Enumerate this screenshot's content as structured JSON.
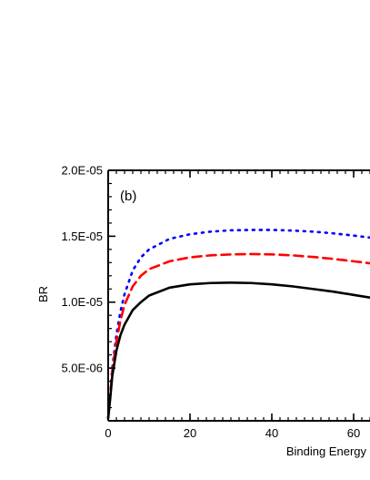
{
  "chart_data": {
    "type": "line",
    "panel_label": "(b)",
    "xlabel": "Binding Energy",
    "ylabel": "BR",
    "xlim": [
      0,
      64
    ],
    "ylim": [
      1e-06,
      2e-05
    ],
    "x_ticks": [
      0,
      20,
      40,
      60
    ],
    "x_tick_labels": [
      "0",
      "20",
      "40",
      "60"
    ],
    "y_ticks": [
      5e-06,
      1e-05,
      1.5e-05,
      2e-05
    ],
    "y_tick_labels": [
      "5.0E-06",
      "1.0E-05",
      "1.5E-05",
      "2.0E-05"
    ],
    "legend": "none",
    "grid": false,
    "series": [
      {
        "color": "#0000ff",
        "style": "dotted",
        "x": [
          0,
          0.5,
          1,
          2,
          3,
          4,
          6,
          8,
          10,
          15,
          20,
          25,
          30,
          35,
          40,
          45,
          50,
          55,
          60,
          64
        ],
        "y": [
          1.2e-06,
          3e-06,
          5e-06,
          7.5e-06,
          9.3e-06,
          1.06e-05,
          1.24e-05,
          1.34e-05,
          1.4e-05,
          1.48e-05,
          1.515e-05,
          1.535e-05,
          1.545e-05,
          1.548e-05,
          1.548e-05,
          1.543e-05,
          1.535e-05,
          1.522e-05,
          1.505e-05,
          1.49e-05
        ]
      },
      {
        "color": "#ff0000",
        "style": "dashed",
        "x": [
          0,
          0.5,
          1,
          2,
          3,
          4,
          6,
          8,
          10,
          15,
          20,
          25,
          30,
          35,
          40,
          45,
          50,
          55,
          60,
          64
        ],
        "y": [
          1.2e-06,
          2.9e-06,
          4.8e-06,
          7e-06,
          8.6e-06,
          9.8e-06,
          1.12e-05,
          1.2e-05,
          1.25e-05,
          1.31e-05,
          1.34e-05,
          1.355e-05,
          1.362e-05,
          1.365e-05,
          1.362e-05,
          1.355e-05,
          1.343e-05,
          1.328e-05,
          1.31e-05,
          1.295e-05
        ]
      },
      {
        "color": "#000000",
        "style": "solid",
        "x": [
          0,
          0.5,
          1,
          2,
          3,
          4,
          6,
          8,
          10,
          15,
          20,
          25,
          30,
          35,
          40,
          45,
          50,
          55,
          60,
          64
        ],
        "y": [
          1.2e-06,
          2.7e-06,
          4.4e-06,
          6.3e-06,
          7.5e-06,
          8.3e-06,
          9.4e-06,
          1e-05,
          1.05e-05,
          1.11e-05,
          1.135e-05,
          1.145e-05,
          1.148e-05,
          1.145e-05,
          1.135e-05,
          1.12e-05,
          1.1e-05,
          1.08e-05,
          1.055e-05,
          1.035e-05
        ]
      }
    ]
  }
}
